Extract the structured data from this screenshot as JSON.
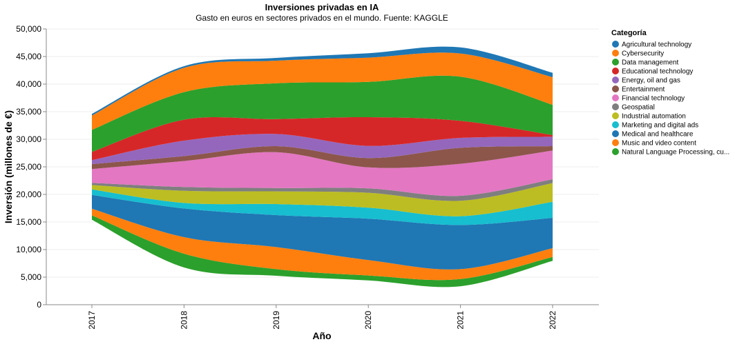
{
  "chart_data": {
    "type": "area",
    "title": "Inversiones privadas en IA",
    "subtitle": "Gasto en euros en sectores privados en el mundo. Fuente: KAGGLE",
    "xlabel": "Año",
    "ylabel": "Inversión (millones de €)",
    "x": [
      "2017",
      "2018",
      "2019",
      "2020",
      "2021",
      "2022"
    ],
    "ylim": [
      0,
      50000
    ],
    "y_ticks": [
      "0",
      "5,000",
      "10,000",
      "15,000",
      "20,000",
      "25,000",
      "30,000",
      "35,000",
      "40,000",
      "45,000",
      "50,000"
    ],
    "stacking": "centered",
    "grid": true,
    "legend_title": "Categoría",
    "legend_position": "right",
    "series": [
      {
        "name": "Natural Language Processing, cu...",
        "color": "#2ca02c",
        "values": [
          800,
          2500,
          1200,
          900,
          1300,
          700
        ]
      },
      {
        "name": "Music and video content",
        "color": "#ff7f0e",
        "values": [
          1200,
          3000,
          4000,
          2800,
          1800,
          1600
        ]
      },
      {
        "name": "Medical and healthcare",
        "color": "#1f77b4",
        "values": [
          2500,
          5200,
          5800,
          7500,
          8000,
          5500
        ]
      },
      {
        "name": "Marketing and digital ads",
        "color": "#17becf",
        "values": [
          1000,
          1000,
          2000,
          2000,
          1600,
          2900
        ]
      },
      {
        "name": "Industrial automation",
        "color": "#bcbd22",
        "values": [
          800,
          2200,
          2300,
          2700,
          2800,
          3400
        ]
      },
      {
        "name": "Geospatial",
        "color": "#7f7f7f",
        "values": [
          400,
          700,
          600,
          800,
          900,
          700
        ]
      },
      {
        "name": "Financial technology",
        "color": "#e377c2",
        "values": [
          2500,
          4700,
          6500,
          3800,
          5800,
          5200
        ]
      },
      {
        "name": "Entertainment",
        "color": "#8c564b",
        "values": [
          900,
          900,
          1100,
          1700,
          2900,
          800
        ]
      },
      {
        "name": "Energy, oil and gas",
        "color": "#9467bd",
        "values": [
          700,
          2800,
          2200,
          2200,
          1800,
          1700
        ]
      },
      {
        "name": "Educational technology",
        "color": "#d62728",
        "values": [
          1500,
          3800,
          2700,
          5200,
          3100,
          300
        ]
      },
      {
        "name": "Data management",
        "color": "#2ca02c",
        "values": [
          4000,
          5000,
          6500,
          6400,
          8000,
          5500
        ]
      },
      {
        "name": "Cybersecurity",
        "color": "#ff7f0e",
        "values": [
          2600,
          4400,
          4100,
          4400,
          4200,
          5000
        ]
      },
      {
        "name": "Agricultural technology",
        "color": "#1f77b4",
        "values": [
          300,
          300,
          500,
          800,
          1100,
          800
        ]
      }
    ],
    "legend_order": [
      "Agricultural technology",
      "Cybersecurity",
      "Data management",
      "Educational technology",
      "Energy, oil and gas",
      "Entertainment",
      "Financial technology",
      "Geospatial",
      "Industrial automation",
      "Marketing and digital ads",
      "Medical and healthcare",
      "Music and video content",
      "Natural Language Processing, cu..."
    ]
  }
}
